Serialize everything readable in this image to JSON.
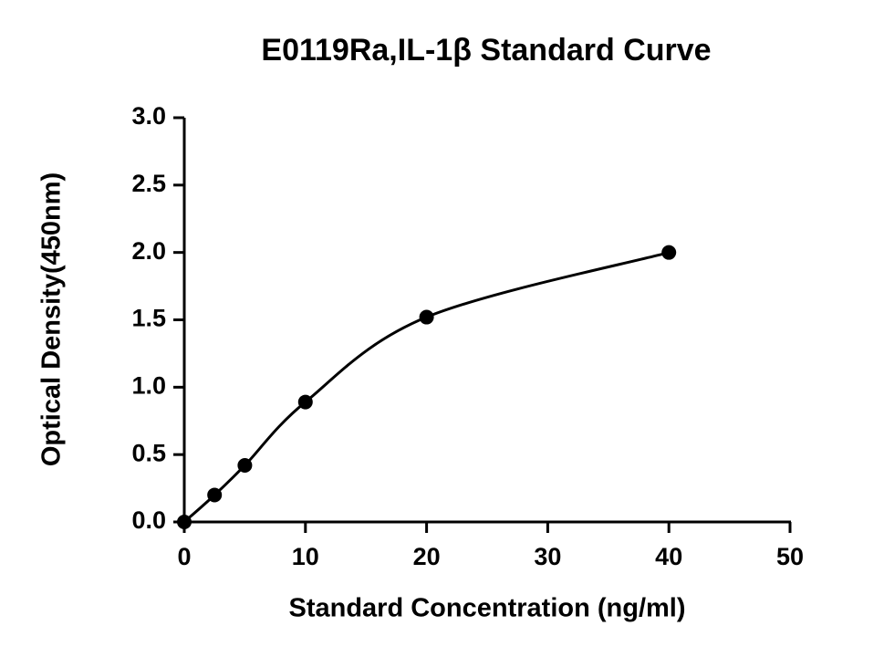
{
  "chart_data": {
    "type": "scatter",
    "title": "E0119Ra,IL-1β Standard Curve",
    "x_label": "Standard Concentration (ng/ml)",
    "y_label": "Optical Density(450nm)",
    "x": [
      0,
      2.5,
      5,
      10,
      20,
      40
    ],
    "values": [
      0.0,
      0.2,
      0.42,
      0.89,
      1.52,
      2.0
    ],
    "color": "#000000",
    "fit_curve": true,
    "xlim": [
      0,
      50
    ],
    "xticks": [
      0,
      10,
      20,
      30,
      40,
      50
    ],
    "ylim": [
      0,
      3
    ],
    "yticks": [
      {
        "value": 0,
        "label": "0.0"
      },
      0.5,
      {
        "value": 1,
        "label": "1.0"
      },
      1.5,
      {
        "value": 2,
        "label": "2.0"
      },
      2.5,
      {
        "value": 3,
        "label": "3.0"
      }
    ]
  }
}
